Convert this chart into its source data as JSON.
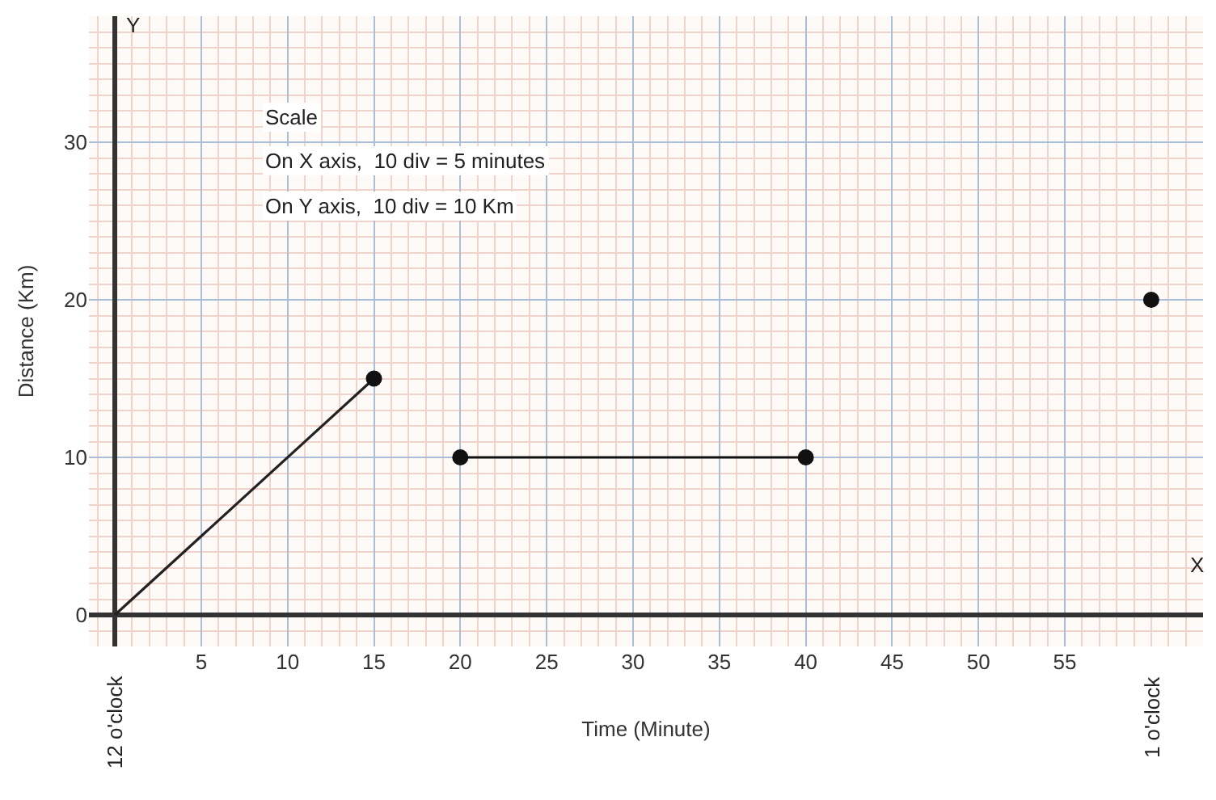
{
  "chart_data": {
    "type": "line",
    "xlabel": "Time (Minute)",
    "ylabel": "Distance (Km)",
    "xlim": [
      -1.5,
      63
    ],
    "ylim": [
      -2,
      38
    ],
    "xticks": [
      5,
      10,
      15,
      20,
      25,
      30,
      35,
      40,
      45,
      50,
      55
    ],
    "yticks": [
      0,
      10,
      20,
      30
    ],
    "grid": true,
    "series": [
      {
        "marker": "none",
        "color": "#222222",
        "x": [
          0,
          15
        ],
        "values": [
          0,
          15
        ]
      },
      {
        "type": "scatter",
        "marker": "circle",
        "color": "#111111",
        "x": [
          15
        ],
        "values": [
          15
        ]
      },
      {
        "marker": "circle",
        "color": "#111111",
        "x": [
          20,
          40
        ],
        "values": [
          10,
          10
        ]
      },
      {
        "type": "scatter",
        "marker": "circle",
        "color": "#111111",
        "x": [
          60
        ],
        "values": [
          20
        ]
      }
    ],
    "annotations": [
      "Scale",
      "On X axis,  10 div = 5 minutes",
      "On Y axis,  10 div = 10 Km",
      "X",
      "Y",
      "12 o'clock",
      "1 o'clock"
    ]
  }
}
